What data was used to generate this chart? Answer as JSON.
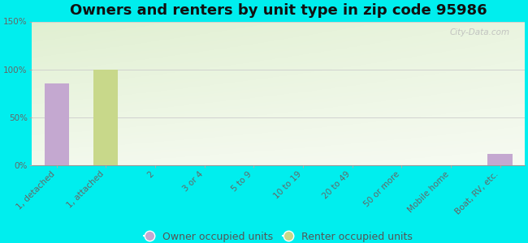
{
  "title": "Owners and renters by unit type in zip code 95986",
  "categories": [
    "1, detached",
    "1, attached",
    "2",
    "3 or 4",
    "5 to 9",
    "10 to 19",
    "20 to 49",
    "50 or more",
    "Mobile home",
    "Boat, RV, etc."
  ],
  "owner_values": [
    85,
    0,
    0,
    0,
    0,
    0,
    0,
    0,
    0,
    12
  ],
  "renter_values": [
    0,
    100,
    0,
    0,
    0,
    0,
    0,
    0,
    0,
    0
  ],
  "owner_color": "#c4a8d0",
  "renter_color": "#c8d88a",
  "background_color": "#00eeee",
  "ylim": [
    0,
    150
  ],
  "yticks": [
    0,
    50,
    100,
    150
  ],
  "ytick_labels": [
    "0%",
    "50%",
    "100%",
    "150%"
  ],
  "legend_owner": "Owner occupied units",
  "legend_renter": "Renter occupied units",
  "bar_width": 0.5,
  "title_fontsize": 13,
  "tick_fontsize": 7.5,
  "legend_fontsize": 9,
  "watermark": "City-Data.com"
}
